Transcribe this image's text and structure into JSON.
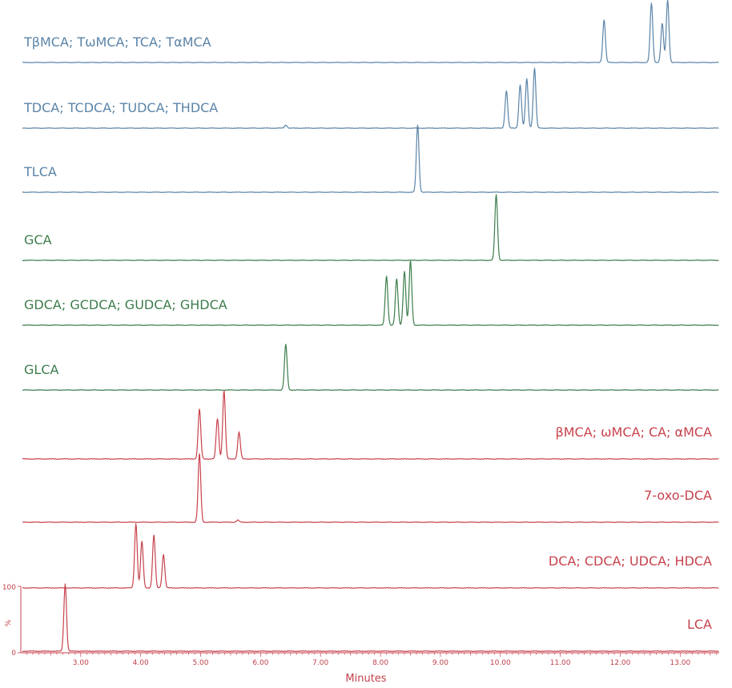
{
  "colors": {
    "blue": "#5b84a8",
    "green": "#3d7d4c",
    "red": "#c7424c"
  },
  "chart_data": {
    "type": "line",
    "title": "",
    "xlabel": "Minutes",
    "ylabel": "%",
    "xlim": [
      2.0,
      13.65
    ],
    "ylim": [
      0,
      100
    ],
    "x_ticks": [
      3.0,
      4.0,
      5.0,
      6.0,
      7.0,
      8.0,
      9.0,
      10.0,
      11.0,
      12.0,
      13.0
    ],
    "x_tick_labels": [
      "3.00",
      "4.00",
      "5.00",
      "6.00",
      "7.00",
      "8.00",
      "9.00",
      "10.00",
      "11.00",
      "12.00",
      "13.00"
    ],
    "y_tick_labels": [
      "100",
      "0"
    ],
    "series": [
      {
        "name": "TβMCA; TωMCA; TCA; TαMCA",
        "color": "blue",
        "label_side": "left",
        "peaks": [
          [
            11.73,
            0.68
          ],
          [
            12.52,
            0.95
          ],
          [
            12.7,
            0.62
          ],
          [
            12.79,
            1.0
          ]
        ]
      },
      {
        "name": "TDCA; TCDCA; TUDCA; THDCA",
        "color": "blue",
        "label_side": "left",
        "peaks": [
          [
            6.42,
            0.05
          ],
          [
            10.1,
            0.62
          ],
          [
            10.33,
            0.72
          ],
          [
            10.44,
            0.82
          ],
          [
            10.57,
            1.0
          ]
        ]
      },
      {
        "name": "TLCA",
        "color": "blue",
        "label_side": "left",
        "peaks": [
          [
            8.62,
            1.0
          ]
        ]
      },
      {
        "name": "GCA",
        "color": "green",
        "label_side": "left",
        "peaks": [
          [
            9.93,
            1.0
          ]
        ]
      },
      {
        "name": "GDCA; GCDCA; GUDCA; GHDCA",
        "color": "green",
        "label_side": "left",
        "peaks": [
          [
            8.1,
            0.76
          ],
          [
            8.27,
            0.72
          ],
          [
            8.4,
            0.84
          ],
          [
            8.5,
            1.0
          ]
        ]
      },
      {
        "name": "GLCA",
        "color": "green",
        "label_side": "left",
        "peaks": [
          [
            6.42,
            1.0
          ]
        ]
      },
      {
        "name": "βMCA; ωMCA; CA; αMCA",
        "color": "red",
        "label_side": "right",
        "peaks": [
          [
            4.98,
            0.73
          ],
          [
            5.28,
            0.59
          ],
          [
            5.39,
            1.0
          ],
          [
            5.64,
            0.39
          ]
        ]
      },
      {
        "name": "7-oxo-DCA",
        "color": "red",
        "label_side": "right",
        "peaks": [
          [
            4.98,
            1.0
          ],
          [
            5.62,
            0.03
          ]
        ]
      },
      {
        "name": "DCA; CDCA; UDCA; HDCA",
        "color": "red",
        "label_side": "right",
        "peaks": [
          [
            3.92,
            1.0
          ],
          [
            4.02,
            0.72
          ],
          [
            4.22,
            0.82
          ],
          [
            4.38,
            0.52
          ]
        ]
      },
      {
        "name": "LCA",
        "color": "red",
        "label_side": "right",
        "peaks": [
          [
            2.74,
            1.0
          ]
        ]
      }
    ]
  }
}
